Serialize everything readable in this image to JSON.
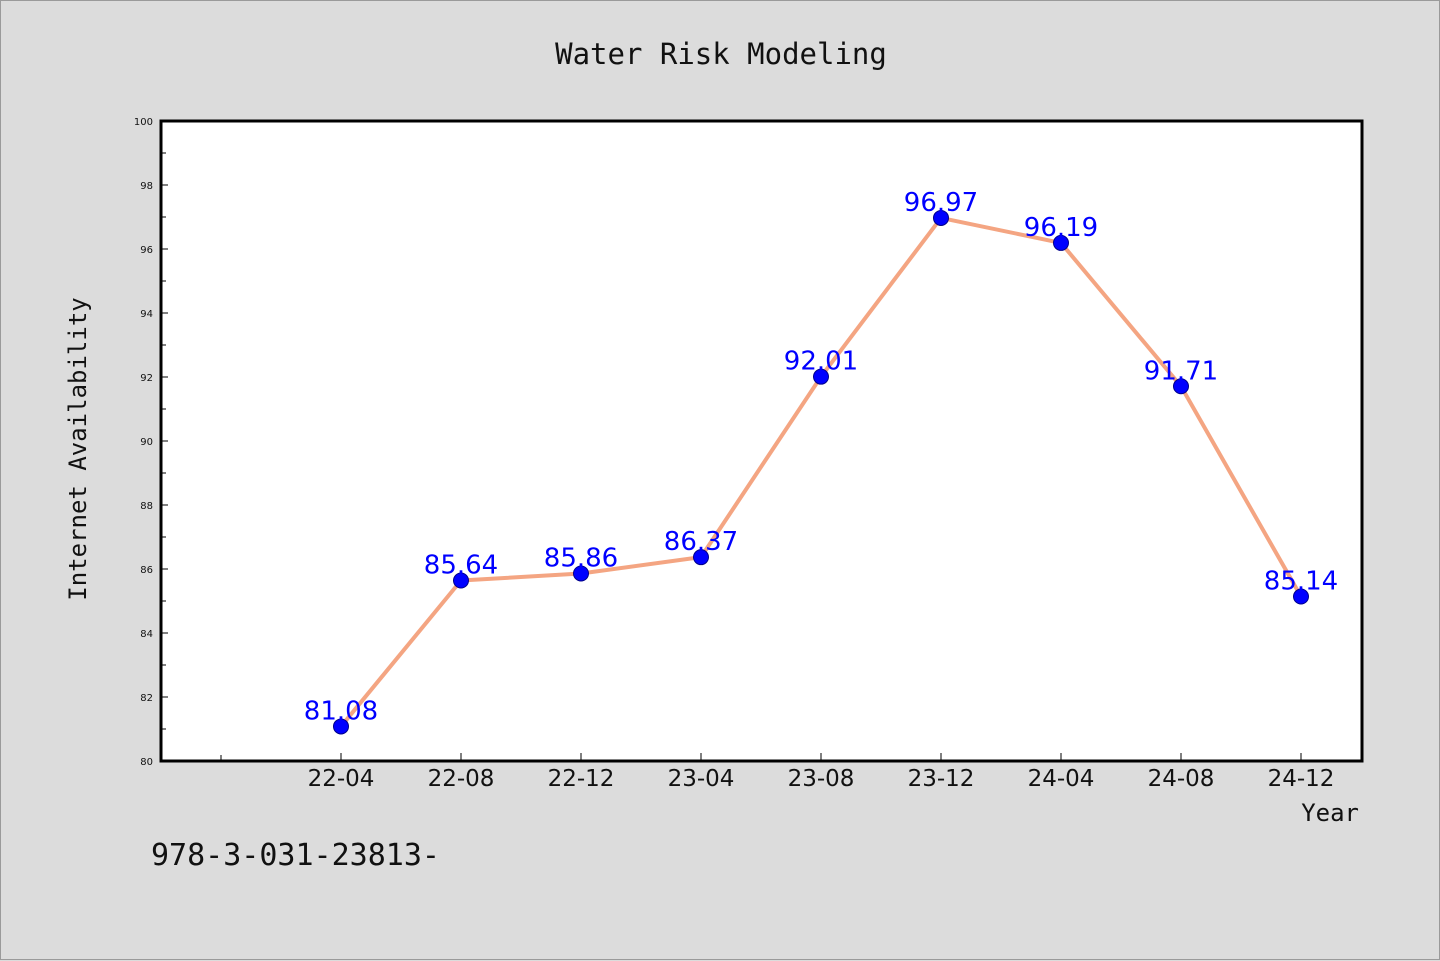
{
  "chart_data": {
    "type": "line",
    "title": "Water Risk Modeling",
    "xlabel": "Year",
    "ylabel": "Internet Availability",
    "categories": [
      "22-04",
      "22-08",
      "22-12",
      "23-04",
      "23-08",
      "23-12",
      "24-04",
      "24-08",
      "24-12"
    ],
    "series": [
      {
        "values": [
          81.08,
          85.64,
          85.86,
          86.37,
          92.01,
          96.97,
          96.19,
          91.71,
          85.14
        ],
        "labels": [
          "81.08",
          "85.64",
          "85.86",
          "86.37",
          "92.01",
          "96.97",
          "96.19",
          "91.71",
          "85.14"
        ],
        "line_color": "#f4a582",
        "marker_color": "#0000ff"
      }
    ],
    "ylim": [
      80,
      100
    ],
    "yticks": [
      "80",
      "82",
      "84",
      "86",
      "88",
      "90",
      "92",
      "94",
      "96",
      "98",
      "100"
    ],
    "grid": false,
    "legend": "none"
  },
  "footer": {
    "text": "978-3-031-23813-"
  },
  "colors": {
    "background": "#dcdcdc",
    "plot_background": "#ffffff",
    "label_color": "#0000ff"
  }
}
